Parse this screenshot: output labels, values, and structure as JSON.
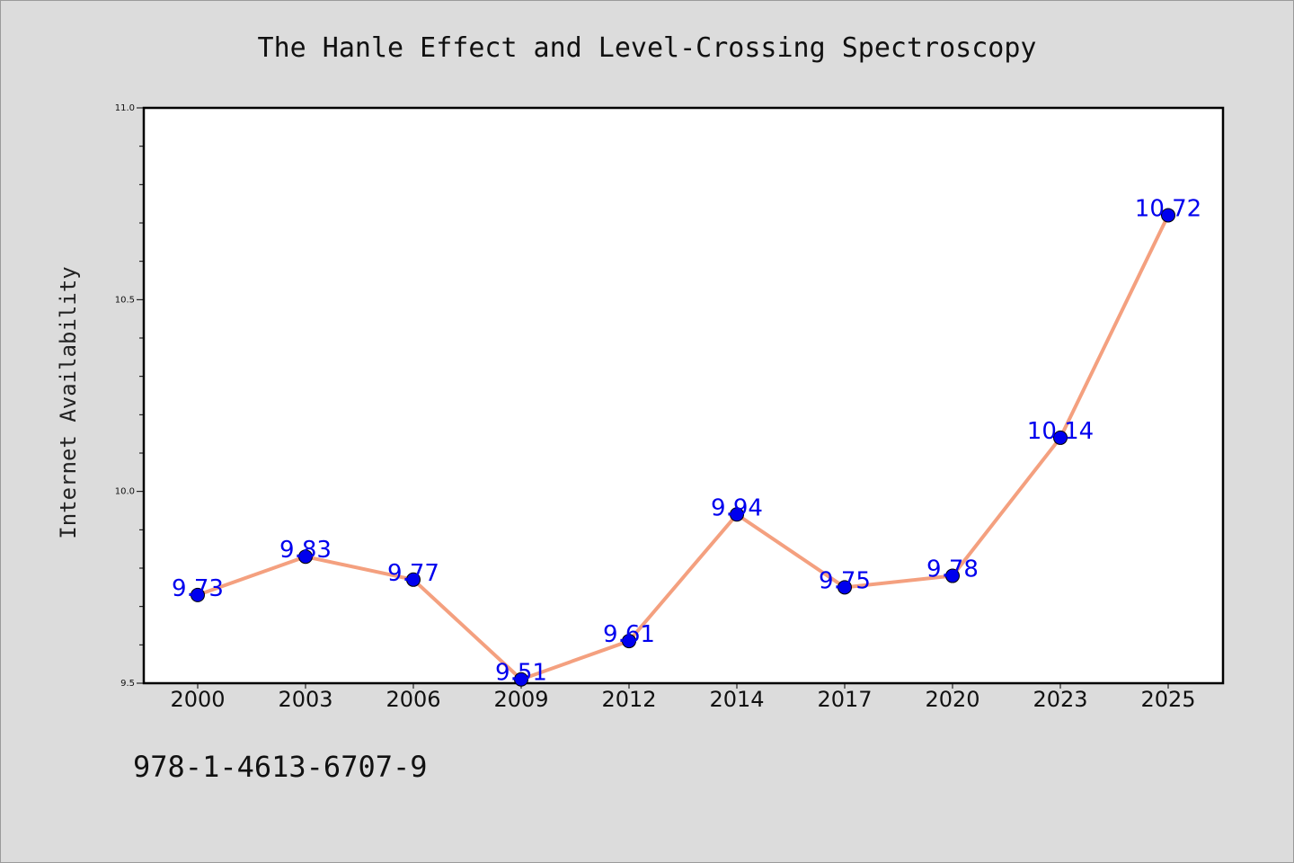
{
  "chart_data": {
    "type": "line",
    "title": "The Hanle Effect and Level-Crossing Spectroscopy",
    "xlabel": "",
    "ylabel": "Internet Availability",
    "categories": [
      "2000",
      "2003",
      "2006",
      "2009",
      "2012",
      "2014",
      "2017",
      "2020",
      "2023",
      "2025"
    ],
    "series": [
      {
        "values": [
          9.73,
          9.83,
          9.77,
          9.51,
          9.61,
          9.94,
          9.75,
          9.78,
          10.14,
          10.72
        ],
        "labels": [
          "9.73",
          "9.83",
          "9.77",
          "9.51",
          "9.61",
          "9.94",
          "9.75",
          "9.78",
          "10.14",
          "10.72"
        ]
      }
    ],
    "ylim": [
      9.5,
      11.0
    ],
    "yticks": [
      "9.5",
      "10.0",
      "10.5",
      "11.0"
    ],
    "grid": false,
    "legend": "none",
    "colors": {
      "line": "#f4a07f",
      "marker": "#0000ee",
      "data_label": "#0000ee"
    }
  },
  "footer": {
    "isbn": "978-1-4613-6707-9"
  }
}
